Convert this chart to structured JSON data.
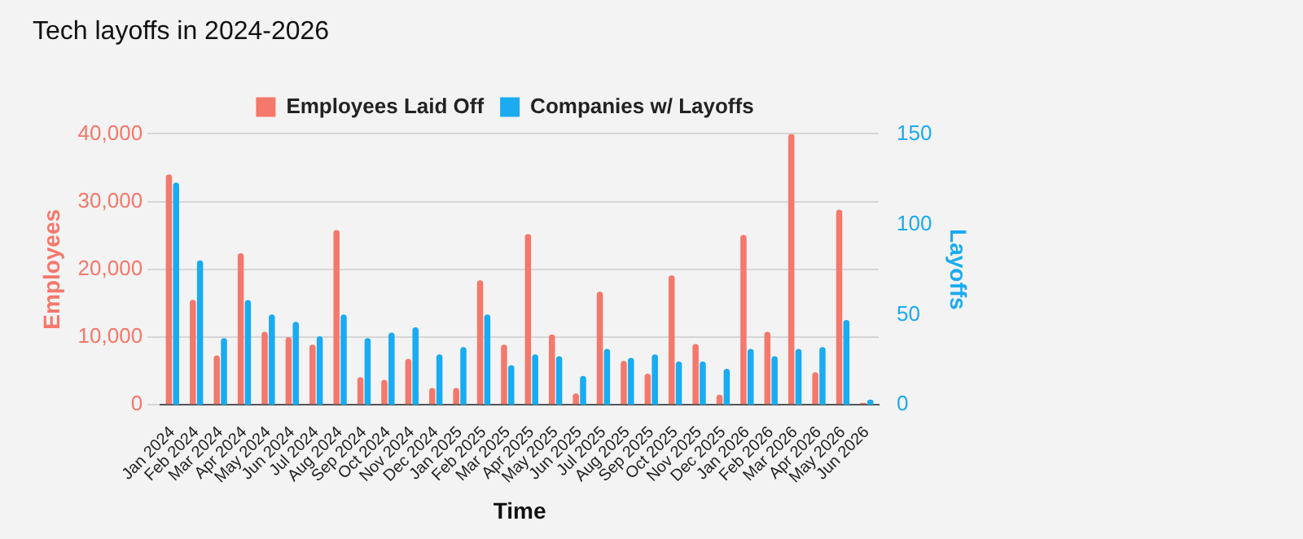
{
  "chart_data": {
    "type": "bar",
    "title": "Tech layoffs in 2024-2026",
    "xlabel": "Time",
    "ylabel": "Employees",
    "y2label": "Layoffs",
    "categories": [
      "Jan 2024",
      "Feb 2024",
      "Mar 2024",
      "Apr 2024",
      "May 2024",
      "Jun 2024",
      "Jul 2024",
      "Aug 2024",
      "Sep 2024",
      "Oct 2024",
      "Nov 2024",
      "Dec 2024",
      "Jan 2025",
      "Feb 2025",
      "Mar 2025",
      "Apr 2025",
      "May 2025",
      "Jun 2025",
      "Jul 2025",
      "Aug 2025",
      "Sep 2025",
      "Oct 2025",
      "Nov 2025",
      "Dec 2025",
      "Jan 2026",
      "Feb 2026",
      "Mar 2026",
      "Apr 2026",
      "May 2026",
      "Jun 2026"
    ],
    "series": [
      {
        "name": "Employees Laid Off",
        "color": "#f4786b",
        "values": [
          34000,
          15500,
          7300,
          22400,
          10800,
          10000,
          8900,
          25800,
          4100,
          3700,
          6800,
          2500,
          2500,
          18400,
          8900,
          25200,
          10400,
          1700,
          16700,
          6500,
          4600,
          19100,
          9000,
          1500,
          25100,
          10800,
          40000,
          4800,
          28800,
          300
        ]
      },
      {
        "name": "Companies w/ Layoffs",
        "color": "#1aabf0",
        "axis": "y2",
        "values": [
          123,
          80,
          37,
          58,
          50,
          46,
          38,
          50,
          37,
          40,
          43,
          28,
          32,
          50,
          22,
          28,
          27,
          16,
          31,
          26,
          28,
          24,
          24,
          20,
          31,
          27,
          31,
          32,
          47,
          3
        ]
      }
    ],
    "ylim": [
      0,
      40000
    ],
    "yticks": [
      0,
      {
        "value": 10000,
        "label": "10,000"
      },
      {
        "value": 20000,
        "label": "20,000"
      },
      {
        "value": 30000,
        "label": "30,000"
      },
      {
        "value": 40000,
        "label": "40,000"
      }
    ],
    "y2lim": [
      0,
      150
    ],
    "y2ticks": [
      0,
      50,
      100,
      150
    ],
    "grid": "y",
    "legend": "top"
  }
}
